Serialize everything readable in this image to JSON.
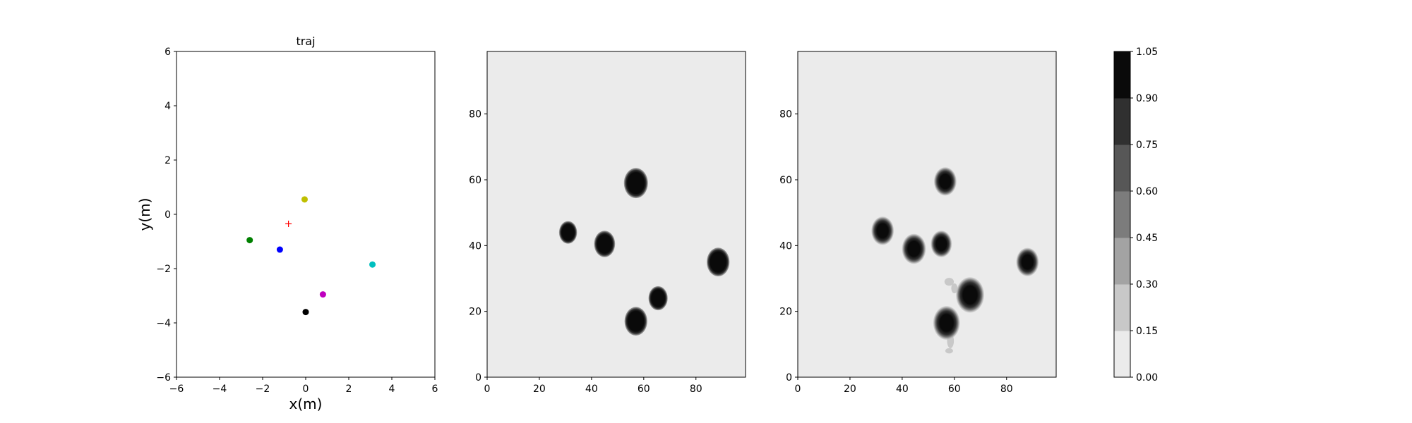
{
  "chart_data": [
    {
      "type": "scatter",
      "title": "traj",
      "xlabel": "x(m)",
      "ylabel": "y(m)",
      "xlim": [
        -6,
        6
      ],
      "ylim": [
        -6,
        6
      ],
      "xticks": [
        "−6",
        "−4",
        "−2",
        "0",
        "2",
        "4",
        "6"
      ],
      "yticks": [
        "−6",
        "−4",
        "−2",
        "0",
        "2",
        "4",
        "6"
      ],
      "points": [
        {
          "x": -2.6,
          "y": -0.95,
          "color": "#008000",
          "marker": "dot"
        },
        {
          "x": -1.2,
          "y": -1.3,
          "color": "#0000ff",
          "marker": "dot"
        },
        {
          "x": -0.05,
          "y": 0.55,
          "color": "#bfbf00",
          "marker": "dot"
        },
        {
          "x": 3.1,
          "y": -1.85,
          "color": "#00bfbf",
          "marker": "dot"
        },
        {
          "x": 0.8,
          "y": -2.95,
          "color": "#bf00bf",
          "marker": "dot"
        },
        {
          "x": 0.0,
          "y": -3.6,
          "color": "#000000",
          "marker": "dot"
        },
        {
          "x": -0.8,
          "y": -0.35,
          "color": "#ff0000",
          "marker": "plus"
        }
      ]
    },
    {
      "type": "heatmap",
      "xlim": [
        0,
        99
      ],
      "ylim": [
        0,
        99
      ],
      "xticks": [
        0,
        20,
        40,
        60,
        80
      ],
      "yticks": [
        0,
        20,
        40,
        60,
        80
      ],
      "background": "#ebebeb",
      "blobs": [
        {
          "x": 57,
          "y": 59,
          "r": 4,
          "level": 1.0
        },
        {
          "x": 31,
          "y": 44,
          "r": 3,
          "level": 1.0
        },
        {
          "x": 45,
          "y": 40.5,
          "r": 3.5,
          "level": 1.0
        },
        {
          "x": 88.5,
          "y": 35,
          "r": 3.8,
          "level": 1.0
        },
        {
          "x": 65.5,
          "y": 24,
          "r": 3.2,
          "level": 1.0
        },
        {
          "x": 57,
          "y": 17,
          "r": 3.8,
          "level": 1.0
        }
      ]
    },
    {
      "type": "heatmap",
      "xlim": [
        0,
        99
      ],
      "ylim": [
        0,
        99
      ],
      "xticks": [
        0,
        20,
        40,
        60,
        80
      ],
      "yticks": [
        0,
        20,
        40,
        60,
        80
      ],
      "background": "#ebebeb",
      "blobs": [
        {
          "x": 56.5,
          "y": 59.5,
          "r": 3.2,
          "level": 1.0
        },
        {
          "x": 32.5,
          "y": 44.5,
          "r": 3.2,
          "level": 1.0
        },
        {
          "x": 44.5,
          "y": 39,
          "r": 3.4,
          "level": 1.0
        },
        {
          "x": 55,
          "y": 40.5,
          "r": 3,
          "level": 1.0
        },
        {
          "x": 88,
          "y": 35,
          "r": 3.2,
          "level": 1.0
        },
        {
          "x": 66,
          "y": 25,
          "r": 4,
          "level": 1.0
        },
        {
          "x": 57,
          "y": 16.5,
          "r": 3.8,
          "level": 1.0
        }
      ],
      "faint_regions": [
        {
          "x": 58,
          "y": 29,
          "rx": 1.8,
          "ry": 1.2
        },
        {
          "x": 60,
          "y": 27,
          "rx": 1.2,
          "ry": 1.5
        },
        {
          "x": 58.5,
          "y": 11,
          "rx": 1.3,
          "ry": 2.2
        },
        {
          "x": 58,
          "y": 8,
          "rx": 1.5,
          "ry": 0.8
        }
      ]
    },
    {
      "type": "colorbar",
      "ticks": [
        "0.00",
        "0.15",
        "0.30",
        "0.45",
        "0.60",
        "0.75",
        "0.90",
        "1.05"
      ],
      "levels": [
        "#ebebeb",
        "#c8c8c8",
        "#a3a3a3",
        "#7c7c7c",
        "#575757",
        "#303030",
        "#0a0a0a"
      ]
    }
  ]
}
